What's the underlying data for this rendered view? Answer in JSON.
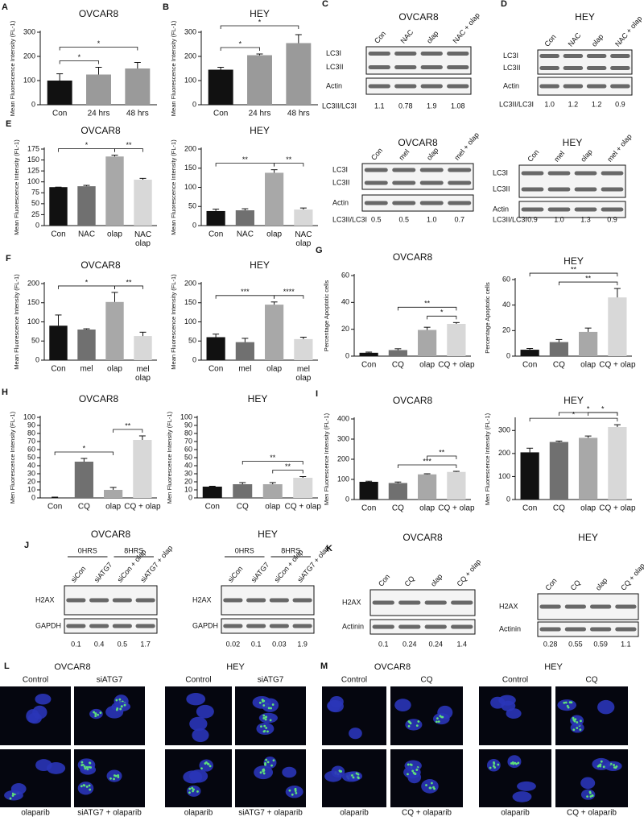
{
  "chart_data": [
    {
      "type": "bar",
      "panel": "A",
      "title": "OVCAR8",
      "ylabel": "Mean Fluorescence Intensity (FL-1)",
      "categories": [
        "Con",
        "24 hrs",
        "48 hrs"
      ],
      "values": [
        100,
        125,
        150
      ],
      "errors": [
        28,
        30,
        25
      ],
      "colors": [
        "#111111",
        "#9a9a9a",
        "#9a9a9a"
      ],
      "ylim": [
        0,
        300
      ],
      "yticks": [
        0,
        100,
        200,
        300
      ],
      "significance": [
        "*",
        "*"
      ]
    },
    {
      "type": "bar",
      "panel": "B",
      "title": "HEY",
      "ylabel": "Mean Fluorescence Intensity (FL-1)",
      "categories": [
        "Con",
        "24 hrs",
        "48 hrs"
      ],
      "values": [
        145,
        205,
        255
      ],
      "errors": [
        10,
        5,
        35
      ],
      "colors": [
        "#111111",
        "#9a9a9a",
        "#9a9a9a"
      ],
      "ylim": [
        0,
        300
      ],
      "yticks": [
        0,
        100,
        200,
        300
      ],
      "significance": [
        "*",
        "*"
      ]
    },
    {
      "type": "bar",
      "panel": "E",
      "title": "OVCAR8",
      "ylabel": "Mean Fluorescence Intensity (FL-1)",
      "categories": [
        "Con",
        "NAC",
        "olap",
        "NAC\nolap"
      ],
      "values": [
        88,
        90,
        158,
        105
      ],
      "errors": [
        0,
        2,
        3,
        3
      ],
      "colors": [
        "#111111",
        "#707070",
        "#a8a8a8",
        "#d8d8d8"
      ],
      "ylim": [
        0,
        175
      ],
      "yticks": [
        0,
        25,
        50,
        75,
        100,
        125,
        150,
        175
      ],
      "significance": [
        "*",
        "**"
      ]
    },
    {
      "type": "bar",
      "title": "HEY",
      "ylabel": "Mean Fluorescence Intensity (FL-1)",
      "categories": [
        "Con",
        "NAC",
        "olap",
        "NAC\nolap"
      ],
      "values": [
        38,
        40,
        138,
        42
      ],
      "errors": [
        5,
        4,
        8,
        4
      ],
      "colors": [
        "#111111",
        "#707070",
        "#a8a8a8",
        "#d8d8d8"
      ],
      "ylim": [
        0,
        200
      ],
      "yticks": [
        0,
        50,
        100,
        150,
        200
      ],
      "significance": [
        "**",
        "**"
      ]
    },
    {
      "type": "bar",
      "panel": "F",
      "title": "OVCAR8",
      "ylabel": "Mean Fluorescence Intensity (FL-1)",
      "categories": [
        "Con",
        "mel",
        "olap",
        "mel\nolap"
      ],
      "values": [
        90,
        80,
        152,
        63
      ],
      "errors": [
        28,
        2,
        25,
        10
      ],
      "colors": [
        "#111111",
        "#707070",
        "#a8a8a8",
        "#d8d8d8"
      ],
      "ylim": [
        0,
        200
      ],
      "yticks": [
        0,
        50,
        100,
        150,
        200
      ],
      "significance": [
        "*",
        "**"
      ]
    },
    {
      "type": "bar",
      "title": "HEY",
      "ylabel": "Mean Fluorescence Intensity (FL-1)",
      "categories": [
        "Con",
        "mel",
        "olap",
        "mel\nolap"
      ],
      "values": [
        60,
        47,
        145,
        55
      ],
      "errors": [
        8,
        10,
        7,
        5
      ],
      "colors": [
        "#111111",
        "#707070",
        "#a8a8a8",
        "#d8d8d8"
      ],
      "ylim": [
        0,
        200
      ],
      "yticks": [
        0,
        50,
        100,
        150,
        200
      ],
      "significance": [
        "***",
        "****"
      ]
    },
    {
      "type": "bar",
      "panel": "G",
      "title": "OVCAR8",
      "ylabel": "Percentage Apoptotic cells",
      "categories": [
        "Con",
        "CQ",
        "olap",
        "CQ + olap"
      ],
      "values": [
        2.5,
        4.5,
        19.5,
        24
      ],
      "errors": [
        0.5,
        1,
        2,
        1
      ],
      "colors": [
        "#111111",
        "#707070",
        "#a8a8a8",
        "#d8d8d8"
      ],
      "ylim": [
        0,
        60
      ],
      "yticks": [
        0,
        20,
        40,
        60
      ],
      "significance": [
        "**",
        "*"
      ]
    },
    {
      "type": "bar",
      "title": "HEY",
      "ylabel": "Percentage Apoptotic cells",
      "categories": [
        "Con",
        "CQ",
        "olap",
        "CQ + olap"
      ],
      "values": [
        5,
        11,
        19,
        46
      ],
      "errors": [
        1,
        2,
        3,
        7
      ],
      "colors": [
        "#111111",
        "#707070",
        "#a8a8a8",
        "#d8d8d8"
      ],
      "ylim": [
        0,
        60
      ],
      "yticks": [
        0,
        20,
        40,
        60
      ],
      "significance": [
        "**",
        "**"
      ]
    },
    {
      "type": "bar",
      "panel": "H",
      "title": "OVCAR8",
      "ylabel": "Men Fluorescence Intensity (FL-1)",
      "categories": [
        "Con",
        "CQ",
        "olap",
        "CQ + olap"
      ],
      "values": [
        0.5,
        45,
        10,
        72
      ],
      "errors": [
        0.5,
        4,
        3,
        5
      ],
      "colors": [
        "#111111",
        "#707070",
        "#a8a8a8",
        "#d8d8d8"
      ],
      "ylim": [
        0,
        100
      ],
      "yticks": [
        0,
        10,
        20,
        30,
        40,
        50,
        60,
        70,
        80,
        90,
        100
      ],
      "significance": [
        "*",
        "**"
      ]
    },
    {
      "type": "bar",
      "title": "HEY",
      "ylabel": "Men Fluorescence Intensity (FL-1)",
      "categories": [
        "Con",
        "CQ",
        "olap",
        "CQ + olap"
      ],
      "values": [
        14,
        17,
        17,
        25
      ],
      "errors": [
        0.5,
        2,
        2,
        1.5
      ],
      "colors": [
        "#111111",
        "#707070",
        "#a8a8a8",
        "#d8d8d8"
      ],
      "ylim": [
        0,
        100
      ],
      "yticks": [
        0,
        10,
        20,
        30,
        40,
        50,
        60,
        70,
        80,
        90,
        100
      ],
      "significance": [
        "**",
        "**"
      ]
    },
    {
      "type": "bar",
      "panel": "I",
      "title": "OVCAR8",
      "ylabel": "Men Fluorescence Intensity (FL-1)",
      "categories": [
        "Con",
        "CQ",
        "olap",
        "CQ + olap"
      ],
      "values": [
        88,
        82,
        125,
        137
      ],
      "errors": [
        3,
        5,
        3,
        3
      ],
      "colors": [
        "#111111",
        "#707070",
        "#a8a8a8",
        "#d8d8d8"
      ],
      "ylim": [
        0,
        400
      ],
      "yticks": [
        0,
        100,
        200,
        300,
        400
      ],
      "significance": [
        "***",
        "**"
      ]
    },
    {
      "type": "bar",
      "title": "HEY",
      "ylabel": "Men Fluorescence Intensity (FL-1)",
      "categories": [
        "Con",
        "CQ",
        "olap",
        "CQ + olap"
      ],
      "values": [
        205,
        250,
        268,
        315
      ],
      "errors": [
        18,
        4,
        8,
        10
      ],
      "colors": [
        "#111111",
        "#707070",
        "#a8a8a8",
        "#d8d8d8"
      ],
      "ylim": [
        0,
        350
      ],
      "yticks": [
        0,
        100,
        200,
        300
      ],
      "significance": [
        "*",
        "*",
        "*"
      ]
    }
  ],
  "blots": [
    {
      "panel": "C",
      "title": "OVCAR8",
      "lanes": [
        "Con",
        "NAC",
        "olap",
        "NAC + olap"
      ],
      "rows": [
        [
          "LC3I",
          "LC3II"
        ],
        [
          "Actin"
        ]
      ],
      "ratio_label": "LC3II/LC3I",
      "ratios": [
        "1.1",
        "0.78",
        "1.9",
        "1.08"
      ]
    },
    {
      "panel": "D",
      "title": "HEY",
      "lanes": [
        "Con",
        "NAC",
        "olap",
        "NAC + olap"
      ],
      "rows": [
        [
          "LC3I",
          "LC3II"
        ],
        [
          "Actin"
        ]
      ],
      "ratio_label": "LC3II/LC3I",
      "ratios": [
        "1.0",
        "1.2",
        "1.2",
        "0.9"
      ]
    },
    {
      "title": "OVCAR8",
      "lanes": [
        "Con",
        "mel",
        "olap",
        "mel + olap"
      ],
      "rows": [
        [
          "LC3I",
          "LC3II"
        ],
        [
          "Actin"
        ]
      ],
      "ratio_label": "LC3II/LC3I",
      "ratios": [
        "0.5",
        "0.5",
        "1.0",
        "0.7"
      ]
    },
    {
      "title": "HEY",
      "lanes": [
        "Con",
        "mel",
        "olap",
        "mel + olap"
      ],
      "rows": [
        [
          "LC3I",
          "LC3II"
        ],
        [
          "Actin"
        ]
      ],
      "ratio_label": "LC3II/LC3I",
      "ratios": [
        "0.9",
        "1.0",
        "1.3",
        "0.9"
      ]
    },
    {
      "panel": "J",
      "title": "OVCAR8",
      "groups": [
        "0HRS",
        "8HRS"
      ],
      "lanes": [
        "siCon",
        "siATG7",
        "siCon + olap",
        "siATG7 + olap"
      ],
      "rows": [
        [
          "H2AX"
        ],
        [
          "GAPDH"
        ]
      ],
      "ratios": [
        "0.1",
        "0.4",
        "0.5",
        "1.7"
      ]
    },
    {
      "title": "HEY",
      "groups": [
        "0HRS",
        "8HRS"
      ],
      "lanes": [
        "siCon",
        "siATG7",
        "siCon + olap",
        "siATG7 + olap"
      ],
      "rows": [
        [
          "H2AX"
        ],
        [
          "GAPDH"
        ]
      ],
      "ratios": [
        "0.02",
        "0.1",
        "0.03",
        "1.9"
      ]
    },
    {
      "panel": "K",
      "title": "OVCAR8",
      "lanes": [
        "Con",
        "CQ",
        "olap",
        "CQ + olap"
      ],
      "rows": [
        [
          "H2AX"
        ],
        [
          "Actinin"
        ]
      ],
      "ratios": [
        "0.1",
        "0.24",
        "0.24",
        "1.4"
      ]
    },
    {
      "title": "HEY",
      "lanes": [
        "Con",
        "CQ",
        "olap",
        "CQ + olap"
      ],
      "rows": [
        [
          "H2AX"
        ],
        [
          "Actinin"
        ]
      ],
      "ratios": [
        "0.28",
        "0.55",
        "0.59",
        "1.1"
      ]
    }
  ],
  "micrographs": [
    {
      "panel": "L",
      "groups": [
        {
          "title": "OVCAR8",
          "columns": [
            "Control",
            "siATG7"
          ],
          "bottom": [
            "olaparib",
            "siATG7 + olaparib"
          ]
        },
        {
          "title": "HEY",
          "columns": [
            "Control",
            "siATG7"
          ],
          "bottom": [
            "olaparib",
            "siATG7 + olaparib"
          ]
        }
      ]
    },
    {
      "panel": "M",
      "groups": [
        {
          "title": "OVCAR8",
          "columns": [
            "Control",
            "CQ"
          ],
          "bottom": [
            "olaparib",
            "CQ + olaparib"
          ]
        },
        {
          "title": "HEY",
          "columns": [
            "Control",
            "CQ"
          ],
          "bottom": [
            "olaparib",
            "CQ + olaparib"
          ]
        }
      ]
    }
  ]
}
